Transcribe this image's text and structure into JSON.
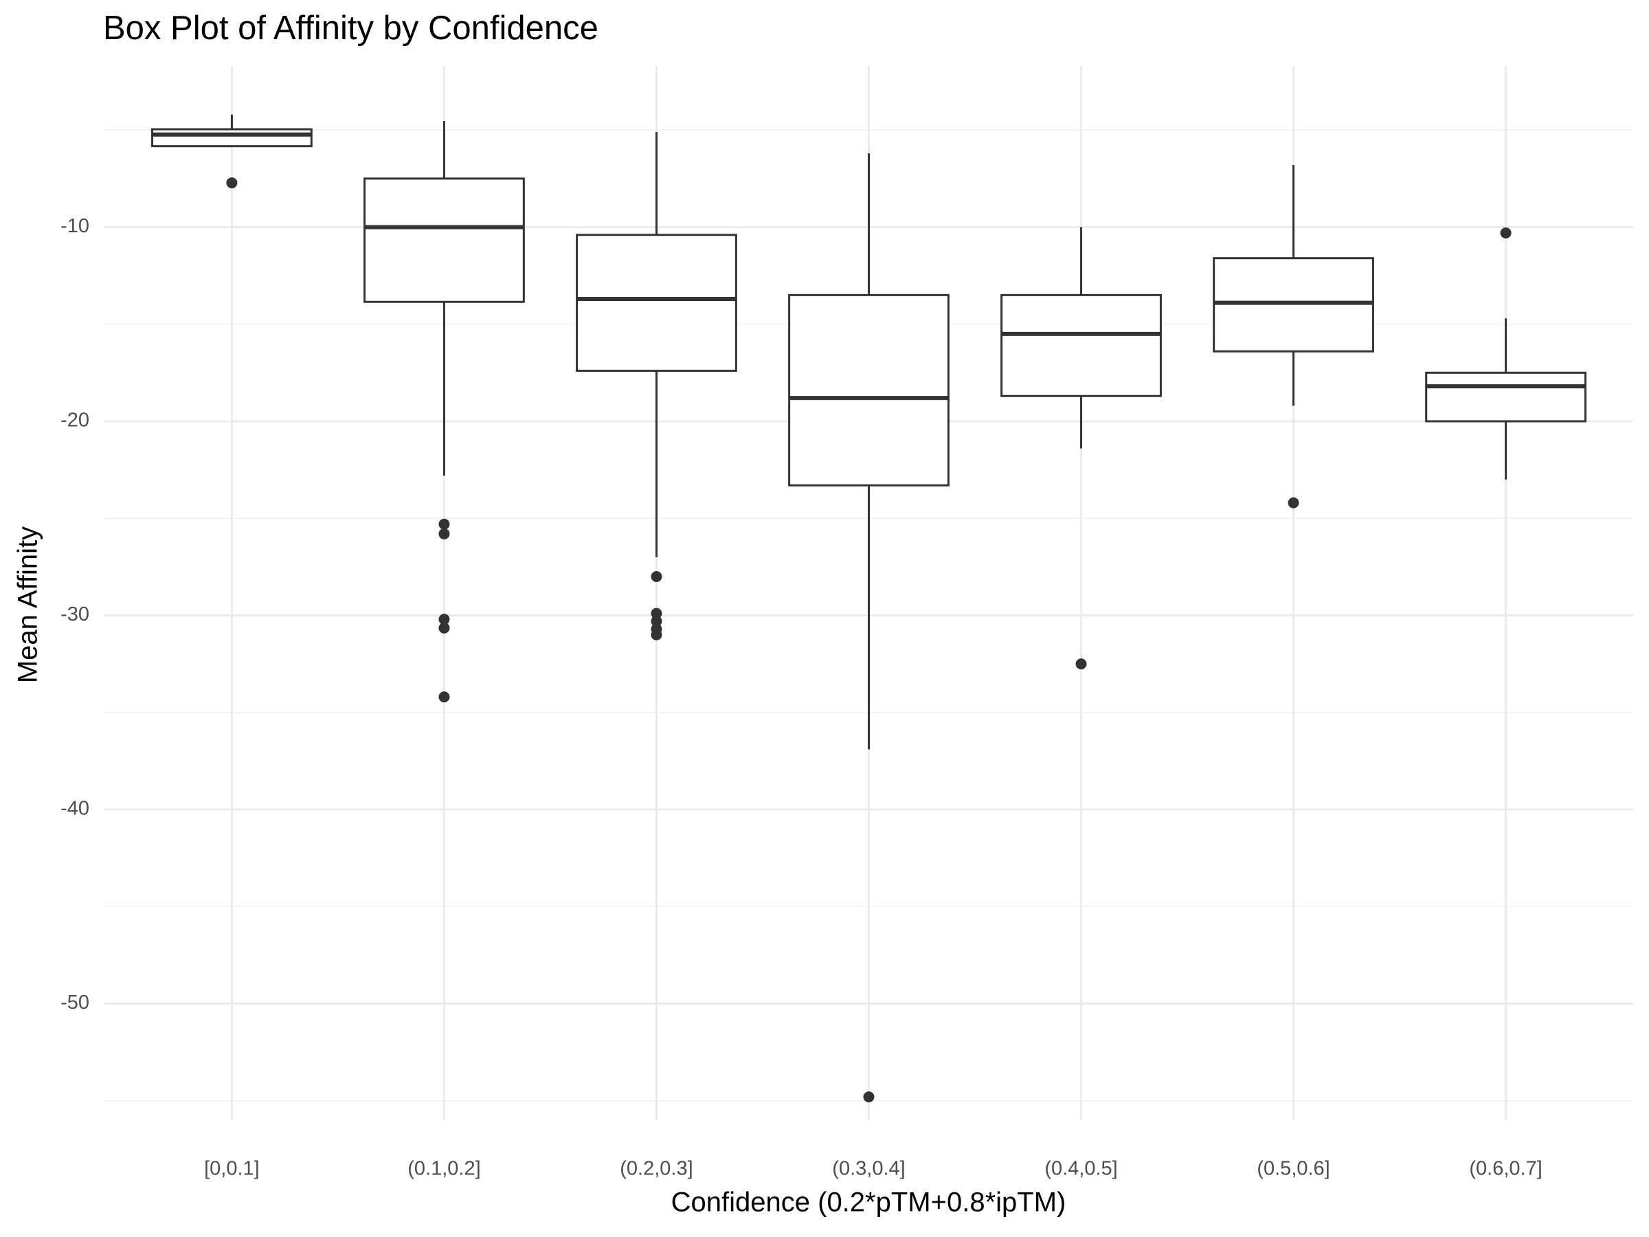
{
  "chart_data": {
    "type": "box",
    "title": "Box Plot of Affinity by Confidence",
    "x_label": "Confidence (0.2*pTM+0.8*ipTM)",
    "y_label": "Mean Affinity",
    "categories": [
      "[0,0.1]",
      "(0.1,0.2]",
      "(0.2,0.3]",
      "(0.3,0.4]",
      "(0.4,0.5]",
      "(0.5,0.6]",
      "(0.6,0.7]"
    ],
    "boxes": [
      {
        "whisker_high": -4.2,
        "q3": -4.96,
        "median": -5.23,
        "q1": -5.83,
        "whisker_low": -5.83,
        "outliers": [
          -7.72
        ]
      },
      {
        "whisker_high": -4.53,
        "q3": -7.5,
        "median": -10.0,
        "q1": -13.85,
        "whisker_low": -22.8,
        "outliers": [
          -25.3,
          -25.8,
          -30.2,
          -30.65,
          -34.2
        ]
      },
      {
        "whisker_high": -5.1,
        "q3": -10.4,
        "median": -13.7,
        "q1": -17.4,
        "whisker_low": -27.0,
        "outliers": [
          -28.0,
          -29.9,
          -30.3,
          -30.7,
          -31.0
        ]
      },
      {
        "whisker_high": -6.2,
        "q3": -13.5,
        "median": -18.8,
        "q1": -23.3,
        "whisker_low": -36.9,
        "outliers": [
          -54.8
        ]
      },
      {
        "whisker_high": -10.0,
        "q3": -13.5,
        "median": -15.5,
        "q1": -18.7,
        "whisker_low": -21.4,
        "outliers": [
          -32.5
        ]
      },
      {
        "whisker_high": -6.8,
        "q3": -11.6,
        "median": -13.9,
        "q1": -16.4,
        "whisker_low": -19.2,
        "outliers": [
          -24.2
        ]
      },
      {
        "whisker_high": -14.7,
        "q3": -17.5,
        "median": -18.2,
        "q1": -20.0,
        "whisker_low": -23.0,
        "outliers": [
          -10.3
        ]
      }
    ],
    "color": "#333333",
    "ylim": [
      -56,
      -1.7
    ],
    "yticks": [
      -50,
      -40,
      -30,
      -20,
      -10
    ],
    "y_minor_ticks": [
      -55,
      -45,
      -35,
      -25,
      -15,
      -5
    ],
    "grid": true
  }
}
